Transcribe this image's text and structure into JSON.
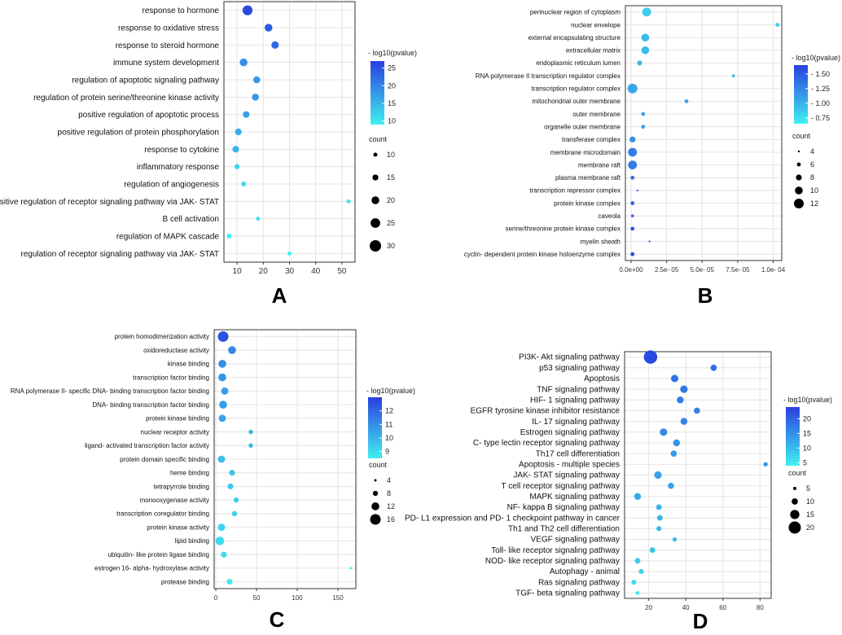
{
  "chart_data": [
    {
      "panel": "A",
      "type": "scatter",
      "categories": [
        "response to hormone",
        "response to oxidative stress",
        "response to steroid hormone",
        "immune system development",
        "regulation of apoptotic signaling pathway",
        "regulation of protein serine/threonine kinase activity",
        "positive regulation of apoptotic process",
        "positive regulation of protein phosphorylation",
        "response to cytokine",
        "inflammatory response",
        "regulation of angiogenesis",
        "positive regulation of receptor signaling pathway via JAK- STAT",
        "B cell activation",
        "regulation of MAPK cascade",
        "regulation of receptor signaling pathway via JAK- STAT"
      ],
      "x": [
        14,
        22,
        24.5,
        12.5,
        17.5,
        17,
        13.5,
        10.5,
        9.5,
        10,
        12.5,
        52.5,
        18,
        7,
        30
      ],
      "count": [
        26,
        20,
        19,
        20,
        18,
        18,
        17,
        17,
        17,
        13,
        12,
        4,
        8,
        12,
        6
      ],
      "pvalue_log": [
        26,
        24,
        23,
        19,
        18,
        18,
        17,
        16,
        15,
        12,
        11,
        10,
        10,
        9,
        9
      ],
      "xlim": [
        5,
        55
      ],
      "xticks": [
        "10",
        "20",
        "30",
        "40",
        "50"
      ],
      "xtick_values": [
        10,
        20,
        30,
        40,
        50
      ],
      "color_label": "- log10(pvalue)",
      "color_ticks": [
        "25",
        "20",
        "15",
        "10"
      ],
      "color_tick_values": [
        25,
        20,
        15,
        10
      ],
      "color_range": [
        9,
        27
      ],
      "size_label": "count",
      "size_ticks": [
        "10",
        "15",
        "20",
        "25",
        "30"
      ],
      "size_tick_values": [
        10,
        15,
        20,
        25,
        30
      ]
    },
    {
      "panel": "B",
      "type": "scatter",
      "categories": [
        "perinuclear region of cytoplasm",
        "nuclear envelope",
        "external encapsulating structure",
        "extracellular matrix",
        "endoplasmic reticulum lumen",
        "RNA polymerase II transcription regulator complex",
        "transcription regulator complex",
        "mitochondrial outer membrane",
        "outer membrane",
        "organelle outer membrane",
        "transferase complex",
        "membrane microdomain",
        "membrane raft",
        "plasma membrane raft",
        "transcription repressor complex",
        "protein kinase complex",
        "caveola",
        "serine/threonine protein kinase complex",
        "myelin sheath",
        "cyclin- dependent protein kinase holoenzyme complex"
      ],
      "x": [
        1.1e-05,
        0.000103,
        1e-05,
        1e-05,
        6e-06,
        7.2e-05,
        1e-06,
        3.9e-05,
        8.5e-06,
        8.5e-06,
        1e-06,
        1e-06,
        1e-06,
        1e-06,
        4.5e-06,
        1e-06,
        1e-06,
        1e-06,
        1.3e-05,
        1e-06
      ],
      "count": [
        11,
        6,
        10,
        10,
        7,
        5,
        12,
        6,
        6,
        6,
        8,
        11,
        11,
        6,
        4,
        6,
        5,
        6,
        3,
        6
      ],
      "pvalue_log": [
        0.85,
        0.85,
        0.95,
        0.95,
        1.0,
        1.0,
        1.05,
        1.05,
        1.1,
        1.1,
        1.2,
        1.3,
        1.3,
        1.4,
        1.4,
        1.45,
        1.45,
        1.5,
        1.5,
        1.6
      ],
      "xlim": [
        -4e-06,
        0.000106
      ],
      "xticks": [
        "0.0e+00",
        "2.5e- 05",
        "5.0e- 05",
        "7.5e- 05",
        "1.0e- 04"
      ],
      "xtick_values": [
        0,
        2.5e-05,
        5e-05,
        7.5e-05,
        0.0001
      ],
      "color_label": "- log10(pvalue)",
      "color_ticks": [
        "- 0.75",
        "- 1.00",
        "- 1.25",
        "- 1.50"
      ],
      "color_tick_values": [
        0.75,
        1.0,
        1.25,
        1.5
      ],
      "color_range": [
        0.65,
        1.65
      ],
      "size_label": "count",
      "size_ticks": [
        "4",
        "6",
        "8",
        "10",
        "12"
      ],
      "size_tick_values": [
        4,
        6,
        8,
        10,
        12
      ]
    },
    {
      "panel": "C",
      "type": "scatter",
      "categories": [
        "protein homodimerization activity",
        "oxidoreductase activity",
        "kinase binding",
        "transcription factor binding",
        "RNA polymerase II- specific DNA- binding transcription factor binding",
        "DNA- binding transcription factor binding",
        "protein kinase binding",
        "nuclear receptor activity",
        "ligand- activated transcription factor activity",
        "protein domain specific binding",
        "heme binding",
        "tetrapyrrole binding",
        "monooxygenase activity",
        "transcription coregulator binding",
        "protein kinase activity",
        "lipid binding",
        "ubiquitin- like protein ligase binding",
        "estrogen 16- alpha- hydroxylase activity",
        "protease binding"
      ],
      "x": [
        9,
        20,
        8,
        8,
        11,
        9,
        8,
        43,
        43,
        7,
        20,
        18,
        25,
        23,
        7,
        5,
        10,
        166,
        17
      ],
      "count": [
        16,
        12,
        12,
        12,
        11,
        12,
        11,
        7,
        7,
        11,
        9,
        9,
        8,
        8,
        11,
        13,
        9,
        2,
        9
      ],
      "pvalue_log": [
        12.5,
        11.2,
        11,
        10.8,
        10.6,
        10.6,
        10.5,
        10,
        10,
        9.8,
        9.6,
        9.5,
        9.4,
        9.3,
        9.2,
        9,
        9,
        8.6,
        8.6
      ],
      "xlim": [
        -2,
        172
      ],
      "xticks": [
        "0",
        "50",
        "100",
        "150"
      ],
      "xtick_values": [
        0,
        50,
        100,
        150
      ],
      "color_label": "- log10(pvalue)",
      "color_ticks": [
        "12",
        "11",
        "10",
        "9"
      ],
      "color_tick_values": [
        12,
        11,
        10,
        9
      ],
      "color_range": [
        8.5,
        13
      ],
      "size_label": "count",
      "size_ticks": [
        "4",
        "8",
        "12",
        "16"
      ],
      "size_tick_values": [
        4,
        8,
        12,
        16
      ]
    },
    {
      "panel": "D",
      "type": "scatter",
      "categories": [
        "PI3K- Akt signaling pathway",
        "p53 signaling pathway",
        "Apoptosis",
        "TNF signaling pathway",
        "HIF- 1 signaling pathway",
        "EGFR tyrosine kinase inhibitor resistance",
        "IL- 17 signaling pathway",
        "Estrogen signaling pathway",
        "C- type lectin receptor signaling pathway",
        "Th17 cell differentiation",
        "Apoptosis - multiple species",
        "JAK- STAT signaling pathway",
        "T cell receptor signaling pathway",
        "MAPK signaling pathway",
        "NF- kappa B signaling pathway",
        "PD- L1 expression and PD- 1 checkpoint pathway in cancer",
        "Th1 and Th2 cell differentiation",
        "VEGF signaling pathway",
        "Toll- like receptor signaling pathway",
        "NOD- like receptor signaling pathway",
        "Autophagy - animal",
        "Ras signaling pathway",
        "TGF- beta signaling pathway"
      ],
      "x": [
        21,
        55,
        34,
        39,
        37,
        46,
        39,
        28,
        35,
        33.5,
        83,
        25,
        32,
        14,
        25.5,
        26,
        25.5,
        34,
        22,
        14,
        16,
        12,
        14
      ],
      "count": [
        22,
        10,
        12,
        12,
        11,
        10,
        11,
        12,
        11,
        10,
        7,
        12,
        10,
        11,
        9,
        9,
        8,
        7,
        9,
        9,
        8,
        8,
        6
      ],
      "pvalue_log": [
        23,
        19,
        18,
        17.5,
        17,
        16.5,
        16,
        15.5,
        14.5,
        14,
        13.5,
        13,
        12.5,
        12,
        11,
        10.5,
        10,
        9.5,
        8.5,
        8,
        7.5,
        6,
        5
      ],
      "xlim": [
        7,
        86
      ],
      "xticks": [
        "20",
        "40",
        "60",
        "80"
      ],
      "xtick_values": [
        20,
        40,
        60,
        80
      ],
      "color_label": "- log10(pvalue)",
      "color_ticks": [
        "20",
        "15",
        "10",
        "5"
      ],
      "color_tick_values": [
        20,
        15,
        10,
        5
      ],
      "color_range": [
        4,
        24
      ],
      "size_label": "count",
      "size_ticks": [
        "5",
        "10",
        "15",
        "20"
      ],
      "size_tick_values": [
        5,
        10,
        15,
        20
      ]
    }
  ],
  "colors": {
    "high": "#2a3fe0",
    "low": "#40f0f0",
    "grid": "#e4e4e4",
    "panel_border": "#333333"
  }
}
